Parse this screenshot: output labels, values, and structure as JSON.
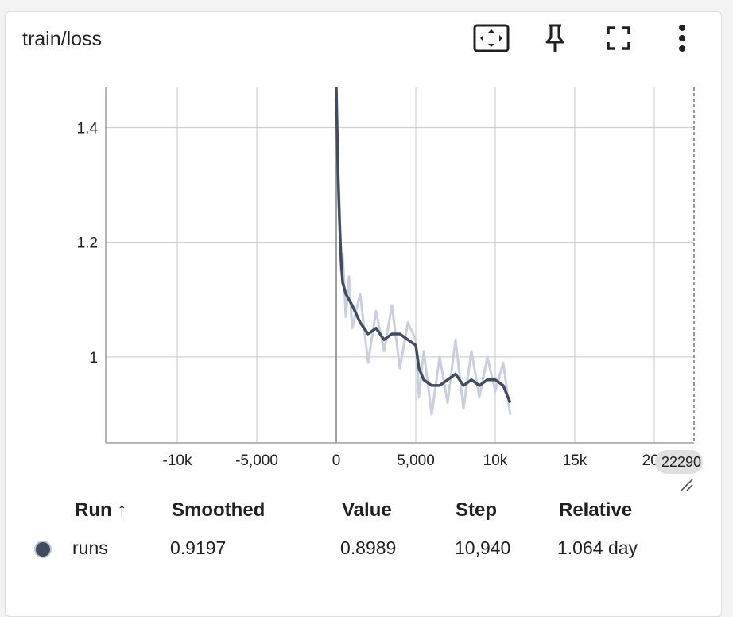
{
  "card": {
    "title": "train/loss"
  },
  "toolbar": [
    {
      "name": "fit-domain-button",
      "icon": "fit-to-data-icon"
    },
    {
      "name": "pin-button",
      "icon": "pin-icon"
    },
    {
      "name": "fullscreen-button",
      "icon": "fullscreen-icon"
    },
    {
      "name": "more-menu-button",
      "icon": "more-vertical-icon"
    }
  ],
  "colors": {
    "series": "#424c5f",
    "raw": "#c9cfdc",
    "grid": "#d0d0d0"
  },
  "chart_data": {
    "type": "line",
    "title": "train/loss",
    "xlabel": "",
    "ylabel": "",
    "xlim": [
      -14500,
      22500
    ],
    "ylim": [
      0.85,
      1.47
    ],
    "x_ticks": [
      -10000,
      -5000,
      0,
      5000,
      10000,
      15000,
      20000
    ],
    "x_tick_labels": [
      "-10k",
      "-5,000",
      "0",
      "5,000",
      "10k",
      "15k",
      "20k"
    ],
    "y_ticks": [
      1,
      1.2,
      1.4
    ],
    "y_tick_labels": [
      "1",
      "1.2",
      "1.4"
    ],
    "grid": true,
    "cursor_x_label": "22290",
    "series": [
      {
        "name": "runs",
        "x": [
          0,
          50,
          100,
          200,
          300,
          400,
          600,
          800,
          1000,
          1500,
          2000,
          2500,
          3000,
          3500,
          4000,
          4500,
          5000,
          5200,
          5500,
          6000,
          6500,
          7000,
          7500,
          8000,
          8500,
          9000,
          9500,
          10000,
          10500,
          10940
        ],
        "smoothed": [
          1.47,
          1.4,
          1.33,
          1.24,
          1.17,
          1.13,
          1.11,
          1.1,
          1.09,
          1.06,
          1.04,
          1.05,
          1.03,
          1.04,
          1.04,
          1.03,
          1.02,
          0.98,
          0.96,
          0.95,
          0.95,
          0.96,
          0.97,
          0.95,
          0.96,
          0.95,
          0.96,
          0.96,
          0.95,
          0.92
        ],
        "value": [
          1.47,
          1.42,
          1.35,
          1.26,
          1.15,
          1.18,
          1.07,
          1.14,
          1.05,
          1.11,
          0.99,
          1.08,
          1.01,
          1.09,
          0.98,
          1.06,
          1.03,
          0.93,
          1.01,
          0.9,
          1.0,
          0.92,
          1.03,
          0.91,
          1.01,
          0.93,
          1.0,
          0.94,
          0.99,
          0.8989
        ]
      }
    ]
  },
  "table": {
    "headers": {
      "run": "Run ↑",
      "smoothed": "Smoothed",
      "value": "Value",
      "step": "Step",
      "relative": "Relative"
    },
    "rows": [
      {
        "run": "runs",
        "smoothed": "0.9197",
        "value": "0.8989",
        "step": "10,940",
        "relative": "1.064 day"
      }
    ]
  }
}
